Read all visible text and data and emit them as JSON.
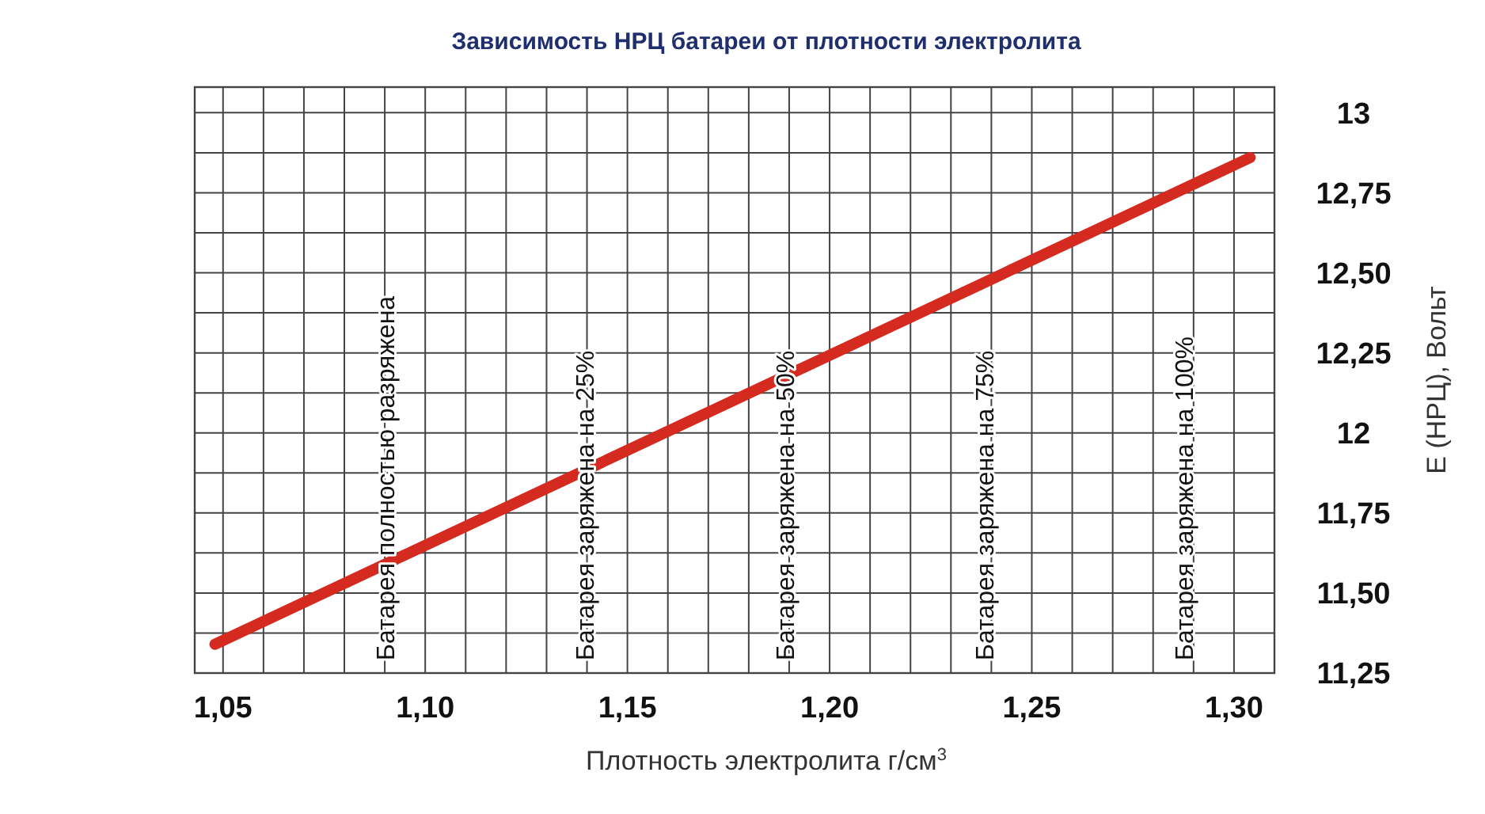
{
  "chart_data": {
    "type": "line",
    "title": "Зависимость НРЦ батареи от плотности электролита",
    "xlabel": "Плотность электролита г/см$^{3}$",
    "ylabel": "E (НРЦ), Вольт",
    "x": [
      1.048,
      1.304
    ],
    "series": [
      {
        "color": "#d42a20",
        "values": [
          11.34,
          12.86
        ]
      }
    ],
    "xlim": [
      1.043,
      1.31
    ],
    "ylim": [
      11.25,
      13.08
    ],
    "xticks": [
      {
        "value": 1.05,
        "label": "1,05"
      },
      {
        "value": 1.06,
        "label": null
      },
      {
        "value": 1.07,
        "label": null
      },
      {
        "value": 1.08,
        "label": null
      },
      {
        "value": 1.09,
        "label": null
      },
      {
        "value": 1.1,
        "label": "1,10"
      },
      {
        "value": 1.11,
        "label": null
      },
      {
        "value": 1.12,
        "label": null
      },
      {
        "value": 1.13,
        "label": null
      },
      {
        "value": 1.14,
        "label": null
      },
      {
        "value": 1.15,
        "label": "1,15"
      },
      {
        "value": 1.16,
        "label": null
      },
      {
        "value": 1.17,
        "label": null
      },
      {
        "value": 1.18,
        "label": null
      },
      {
        "value": 1.19,
        "label": null
      },
      {
        "value": 1.2,
        "label": "1,20"
      },
      {
        "value": 1.21,
        "label": null
      },
      {
        "value": 1.22,
        "label": null
      },
      {
        "value": 1.23,
        "label": null
      },
      {
        "value": 1.24,
        "label": null
      },
      {
        "value": 1.25,
        "label": "1,25"
      },
      {
        "value": 1.26,
        "label": null
      },
      {
        "value": 1.27,
        "label": null
      },
      {
        "value": 1.28,
        "label": null
      },
      {
        "value": 1.29,
        "label": null
      },
      {
        "value": 1.3,
        "label": "1,30"
      }
    ],
    "yticks": [
      {
        "value": 11.25,
        "label": "11,25"
      },
      {
        "value": 11.375,
        "label": null
      },
      {
        "value": 11.5,
        "label": "11,50"
      },
      {
        "value": 11.625,
        "label": null
      },
      {
        "value": 11.75,
        "label": "11,75"
      },
      {
        "value": 11.875,
        "label": null
      },
      {
        "value": 12,
        "label": "12"
      },
      {
        "value": 12.125,
        "label": null
      },
      {
        "value": 12.25,
        "label": "12,25"
      },
      {
        "value": 12.375,
        "label": null
      },
      {
        "value": 12.5,
        "label": "12,50"
      },
      {
        "value": 12.625,
        "label": null
      },
      {
        "value": 12.75,
        "label": "12,75"
      },
      {
        "value": 12.875,
        "label": null
      },
      {
        "value": 13,
        "label": "13"
      }
    ],
    "grid": true,
    "line_style": "solid",
    "annotations": [
      "Батарея полностью разряжена",
      "Батарея заряжена на 25%",
      "Батарея заряжена на 50%",
      "Батарея заряжена на 75%",
      "Батарея заряжена на 100%"
    ]
  }
}
